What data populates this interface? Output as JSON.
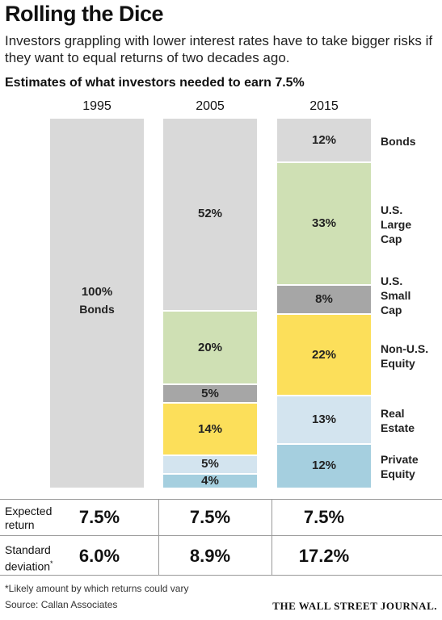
{
  "header": {
    "title": "Rolling the Dice",
    "subtitle": "Investors grappling with lower interest rates have to take bigger risks if they want to equal returns of two decades ago.",
    "chart_title": "Estimates of what investors needed to earn 7.5%"
  },
  "chart_data": {
    "type": "bar",
    "stacked": true,
    "title": "Estimates of what investors needed to earn 7.5%",
    "categories": [
      "1995",
      "2005",
      "2015"
    ],
    "series": [
      {
        "name": "Bonds",
        "values": [
          100,
          52,
          12
        ],
        "color": "#d9d9d9"
      },
      {
        "name": "U.S. Large Cap",
        "values": [
          0,
          20,
          33
        ],
        "color": "#cfe0b4"
      },
      {
        "name": "U.S. Small Cap",
        "values": [
          0,
          5,
          8
        ],
        "color": "#a6a6a6"
      },
      {
        "name": "Non-U.S. Equity",
        "values": [
          0,
          14,
          22
        ],
        "color": "#fcdf5a"
      },
      {
        "name": "Real Estate",
        "values": [
          0,
          5,
          13
        ],
        "color": "#d3e4ef"
      },
      {
        "name": "Private Equity",
        "values": [
          0,
          4,
          12
        ],
        "color": "#a5cfdf"
      }
    ],
    "value_labels": [
      [
        "100%",
        "",
        "",
        "",
        "",
        ""
      ],
      [
        "52%",
        "20%",
        "5%",
        "14%",
        "5%",
        "4%"
      ],
      [
        "12%",
        "33%",
        "8%",
        "22%",
        "13%",
        "12%"
      ]
    ],
    "inline_series_label": {
      "column": 0,
      "series": 0,
      "text": "Bonds"
    },
    "legend_labels": [
      "Bonds",
      "U.S.\nLarge\nCap",
      "U.S.\nSmall\nCap",
      "Non-U.S.\nEquity",
      "Real\nEstate",
      "Private\nEquity"
    ],
    "legend_position": "right"
  },
  "table": {
    "expected_label": "Expected\nreturn",
    "std_label": "Standard\ndeviation",
    "std_marker": "*",
    "expected": [
      "7.5%",
      "7.5%",
      "7.5%"
    ],
    "std": [
      "6.0%",
      "8.9%",
      "17.2%"
    ]
  },
  "footer": {
    "footnote": "*Likely amount by which returns could vary",
    "source": "Source: Callan Associates",
    "masthead": "THE WALL STREET JOURNAL."
  }
}
